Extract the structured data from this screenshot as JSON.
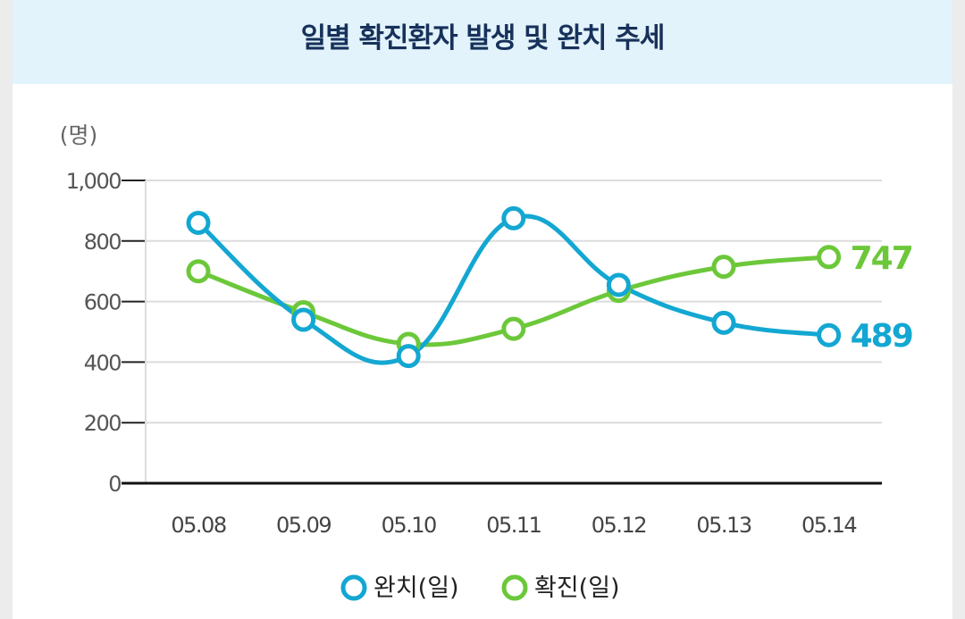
{
  "title": "일별 확진환자 발생 및 완치 추세",
  "chart_data": {
    "type": "line",
    "title": "일별 확진환자 발생 및 완치 추세",
    "unit_label": "(명)",
    "categories": [
      "05.08",
      "05.09",
      "05.10",
      "05.11",
      "05.12",
      "05.13",
      "05.14"
    ],
    "ylim": [
      0,
      1000
    ],
    "yticks": [
      0,
      200,
      400,
      600,
      800,
      1000
    ],
    "ytick_labels": [
      "0",
      "200",
      "400",
      "600",
      "800",
      "1,000"
    ],
    "grid": true,
    "legend_position": "bottom",
    "series": [
      {
        "name": "완치(일)",
        "color": "#13a7d2",
        "values": [
          860,
          540,
          420,
          875,
          655,
          530,
          489
        ],
        "end_label": "489"
      },
      {
        "name": "확진(일)",
        "color": "#6cc83a",
        "values": [
          700,
          565,
          460,
          510,
          635,
          715,
          747
        ],
        "end_label": "747"
      }
    ]
  }
}
